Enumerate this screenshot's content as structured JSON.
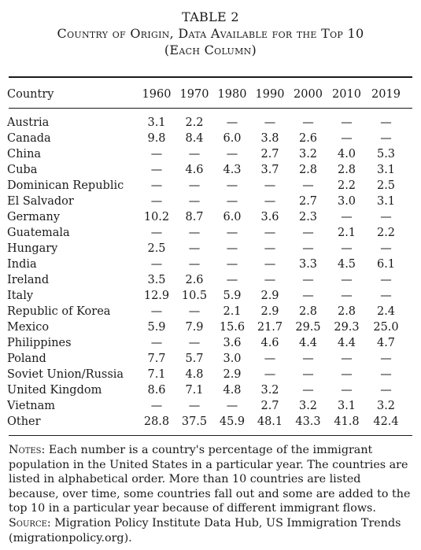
{
  "table": {
    "label": "TABLE 2",
    "title_line1": "Country of Origin, Data Available for the Top 10",
    "title_line2": "(Each Column)",
    "header": {
      "country": "Country",
      "years": [
        "1960",
        "1970",
        "1980",
        "1990",
        "2000",
        "2010",
        "2019"
      ]
    },
    "rows": [
      {
        "country": "Austria",
        "values": [
          "3.1",
          "2.2",
          "—",
          "—",
          "—",
          "—",
          "—"
        ]
      },
      {
        "country": "Canada",
        "values": [
          "9.8",
          "8.4",
          "6.0",
          "3.8",
          "2.6",
          "—",
          "—"
        ]
      },
      {
        "country": "China",
        "values": [
          "—",
          "—",
          "—",
          "2.7",
          "3.2",
          "4.0",
          "5.3"
        ]
      },
      {
        "country": "Cuba",
        "values": [
          "—",
          "4.6",
          "4.3",
          "3.7",
          "2.8",
          "2.8",
          "3.1"
        ]
      },
      {
        "country": "Dominican Republic",
        "values": [
          "—",
          "—",
          "—",
          "—",
          "—",
          "2.2",
          "2.5"
        ]
      },
      {
        "country": "El Salvador",
        "values": [
          "—",
          "—",
          "—",
          "—",
          "2.7",
          "3.0",
          "3.1"
        ]
      },
      {
        "country": "Germany",
        "values": [
          "10.2",
          "8.7",
          "6.0",
          "3.6",
          "2.3",
          "—",
          "—"
        ]
      },
      {
        "country": "Guatemala",
        "values": [
          "—",
          "—",
          "—",
          "—",
          "—",
          "2.1",
          "2.2"
        ]
      },
      {
        "country": "Hungary",
        "values": [
          "2.5",
          "—",
          "—",
          "—",
          "—",
          "—",
          "—"
        ]
      },
      {
        "country": "India",
        "values": [
          "—",
          "—",
          "—",
          "—",
          "3.3",
          "4.5",
          "6.1"
        ]
      },
      {
        "country": "Ireland",
        "values": [
          "3.5",
          "2.6",
          "—",
          "—",
          "—",
          "—",
          "—"
        ]
      },
      {
        "country": "Italy",
        "values": [
          "12.9",
          "10.5",
          "5.9",
          "2.9",
          "—",
          "—",
          "—"
        ]
      },
      {
        "country": "Republic of Korea",
        "values": [
          "—",
          "—",
          "2.1",
          "2.9",
          "2.8",
          "2.8",
          "2.4"
        ]
      },
      {
        "country": "Mexico",
        "values": [
          "5.9",
          "7.9",
          "15.6",
          "21.7",
          "29.5",
          "29.3",
          "25.0"
        ]
      },
      {
        "country": "Philippines",
        "values": [
          "—",
          "—",
          "3.6",
          "4.6",
          "4.4",
          "4.4",
          "4.7"
        ]
      },
      {
        "country": "Poland",
        "values": [
          "7.7",
          "5.7",
          "3.0",
          "—",
          "—",
          "—",
          "—"
        ]
      },
      {
        "country": "Soviet Union/Russia",
        "values": [
          "7.1",
          "4.8",
          "2.9",
          "—",
          "—",
          "—",
          "—"
        ]
      },
      {
        "country": "United Kingdom",
        "values": [
          "8.6",
          "7.1",
          "4.8",
          "3.2",
          "—",
          "—",
          "—"
        ]
      },
      {
        "country": "Vietnam",
        "values": [
          "—",
          "—",
          "—",
          "2.7",
          "3.2",
          "3.1",
          "3.2"
        ]
      },
      {
        "country": "Other",
        "values": [
          "28.8",
          "37.5",
          "45.9",
          "48.1",
          "43.3",
          "41.8",
          "42.4"
        ]
      }
    ]
  },
  "notes": {
    "notes_label": "Notes:",
    "notes_text": " Each number is a country's percentage of the immigrant population in the United States in a particular year. The countries are listed in alphabetical order. More than 10 countries are listed because, over time, some countries fall out and some are added to the top 10 in a particular year because of different immigrant flows.",
    "source_label": "Source:",
    "source_text": " Migration Policy Institute Data Hub, US Immigration Trends (migrationpolicy.org)."
  }
}
